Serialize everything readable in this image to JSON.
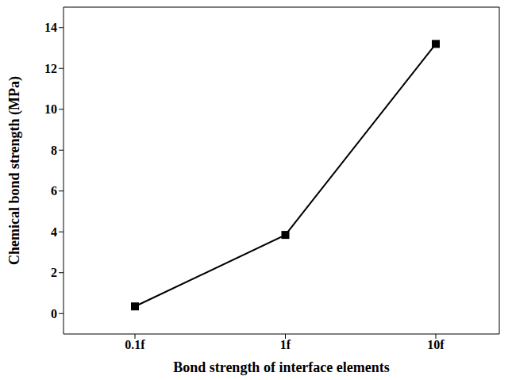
{
  "chart_data": {
    "type": "line",
    "x_label": "Bond strength of interface elements",
    "y_label": "Chemical bond strength (MPa)",
    "categories": [
      "0.1f",
      "1f",
      "10f"
    ],
    "values": [
      0.35,
      3.85,
      13.2
    ],
    "color": "#000000",
    "marker": "square",
    "ylim": [
      -1,
      15
    ],
    "yticks": [
      0,
      2,
      4,
      6,
      8,
      10,
      12,
      14
    ],
    "grid": false
  }
}
